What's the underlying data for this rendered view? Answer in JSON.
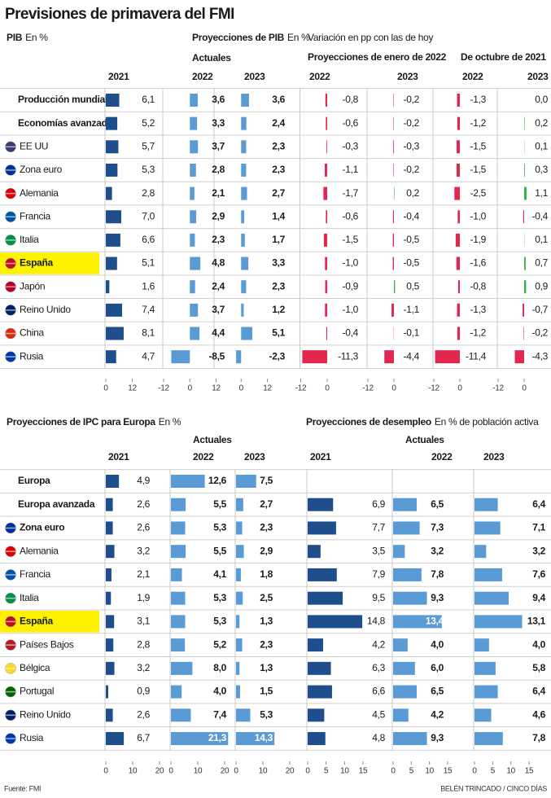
{
  "title": "Previsiones de primavera del FMI",
  "headers": [
    {
      "title": "PIB",
      "unit": "En %"
    },
    {
      "title": "Proyecciones de PIB",
      "unit": "En %",
      "subtitle": "Actuales"
    },
    {
      "title": "Variación en pp con las de hoy"
    },
    {
      "title": "Proyecciones de enero de 2022"
    },
    {
      "title": "De octubre de 2021"
    },
    {
      "title": "Proyecciones de IPC para Europa",
      "unit": "En %",
      "subtitle": "Actuales"
    },
    {
      "title": "Proyecciones de desempleo",
      "unit": "En % de población activa",
      "subtitle": "Actuales"
    }
  ],
  "chart_data": [
    {
      "type": "bar",
      "orientation": "horizontal",
      "title": "2021",
      "categories": [
        "Producción mundial",
        "Economías avanzadas",
        "EE UU",
        "Zona euro",
        "Alemania",
        "Francia",
        "Italia",
        "España",
        "Japón",
        "Reino Unido",
        "China",
        "Rusia"
      ],
      "values": [
        6.1,
        5.2,
        5.7,
        5.3,
        2.8,
        7.0,
        6.6,
        5.1,
        1.6,
        7.4,
        8.1,
        4.7
      ],
      "value_labels": [
        "6,1",
        "5,2",
        "5,7",
        "5,3",
        "2,8",
        "7,0",
        "6,6",
        "5,1",
        "1,6",
        "7,4",
        "8,1",
        "4,7"
      ],
      "color": "#1f4e8c",
      "xlim": [
        0,
        12
      ],
      "xticks": [
        0,
        12
      ]
    },
    {
      "type": "bar",
      "orientation": "horizontal",
      "title": "2022",
      "values": [
        3.6,
        3.3,
        3.7,
        2.8,
        2.1,
        2.9,
        2.3,
        4.8,
        2.4,
        3.7,
        4.4,
        -8.5
      ],
      "value_labels": [
        "3,6",
        "3,3",
        "3,7",
        "2,8",
        "2,1",
        "2,9",
        "2,3",
        "4,8",
        "2,4",
        "3,7",
        "4,4",
        "-8,5"
      ],
      "color": "#5b9bd5",
      "xlim": [
        -12,
        12
      ],
      "xticks": [
        -12,
        0,
        12
      ]
    },
    {
      "type": "bar",
      "orientation": "horizontal",
      "title": "2023",
      "values": [
        3.6,
        2.4,
        2.3,
        2.3,
        2.7,
        1.4,
        1.7,
        3.3,
        2.3,
        1.2,
        5.1,
        -2.3
      ],
      "value_labels": [
        "3,6",
        "2,4",
        "2,3",
        "2,3",
        "2,7",
        "1,4",
        "1,7",
        "3,3",
        "2,3",
        "1,2",
        "5,1",
        "-2,3"
      ],
      "color": "#5b9bd5",
      "xlim": [
        -12,
        12
      ],
      "xticks": [
        0,
        12
      ]
    },
    {
      "type": "bar",
      "orientation": "horizontal",
      "title": "2022",
      "values": [
        -0.8,
        -0.6,
        -0.3,
        -1.1,
        -1.7,
        -0.6,
        -1.5,
        -1.0,
        -0.9,
        -1.0,
        -0.4,
        -11.3
      ],
      "value_labels": [
        "-0,8",
        "-0,6",
        "-0,3",
        "-1,1",
        "-1,7",
        "-0,6",
        "-1,5",
        "-1,0",
        "-0,9",
        "-1,0",
        "-0,4",
        "-11,3"
      ],
      "color": "#3cae4a",
      "negative_color": "#e2264d",
      "xlim": [
        -12,
        12
      ],
      "xticks": [
        -12,
        0
      ]
    },
    {
      "type": "bar",
      "orientation": "horizontal",
      "title": "2023",
      "values": [
        -0.2,
        -0.2,
        -0.3,
        -0.2,
        0.2,
        -0.4,
        -0.5,
        -0.5,
        0.5,
        -1.1,
        -0.1,
        -4.4
      ],
      "value_labels": [
        "-0,2",
        "-0,2",
        "-0,3",
        "-0,2",
        "0,2",
        "-0,4",
        "-0,5",
        "-0,5",
        "0,5",
        "-1,1",
        "-0,1",
        "-4,4"
      ],
      "color": "#3cae4a",
      "negative_color": "#e2264d",
      "xlim": [
        -12,
        12
      ],
      "xticks": [
        -12,
        0
      ]
    },
    {
      "type": "bar",
      "orientation": "horizontal",
      "title": "2022",
      "values": [
        -1.3,
        -1.2,
        -1.5,
        -1.5,
        -2.5,
        -1.0,
        -1.9,
        -1.6,
        -0.8,
        -1.3,
        -1.2,
        -11.4
      ],
      "value_labels": [
        "-1,3",
        "-1,2",
        "-1,5",
        "-1,5",
        "-2,5",
        "-1,0",
        "-1,9",
        "-1,6",
        "-0,8",
        "-1,3",
        "-1,2",
        "-11,4"
      ],
      "color": "#3cae4a",
      "negative_color": "#e2264d",
      "xlim": [
        -12,
        12
      ],
      "xticks": [
        -12,
        0
      ]
    },
    {
      "type": "bar",
      "orientation": "horizontal",
      "title": "2023",
      "values": [
        0.0,
        0.2,
        0.1,
        0.3,
        1.1,
        -0.4,
        0.1,
        0.7,
        0.9,
        -0.7,
        -0.2,
        -4.3
      ],
      "value_labels": [
        "0,0",
        "0,2",
        "0,1",
        "0,3",
        "1,1",
        "-0,4",
        "0,1",
        "0,7",
        "0,9",
        "-0,7",
        "-0,2",
        "-4,3"
      ],
      "color": "#3cae4a",
      "negative_color": "#e2264d",
      "xlim": [
        -12,
        12
      ],
      "xticks": [
        -12,
        0
      ]
    },
    {
      "type": "bar",
      "orientation": "horizontal",
      "title": "2021",
      "categories": [
        "Europa",
        "Europa avanzada",
        "Zona euro",
        "Alemania",
        "Francia",
        "Italia",
        "España",
        "Países Bajos",
        "Bélgica",
        "Portugal",
        "Reino Unido",
        "Rusia"
      ],
      "values": [
        4.9,
        2.6,
        2.6,
        3.2,
        2.1,
        1.9,
        3.1,
        2.8,
        3.2,
        0.9,
        2.6,
        6.7
      ],
      "value_labels": [
        "4,9",
        "2,6",
        "2,6",
        "3,2",
        "2,1",
        "1,9",
        "3,1",
        "2,8",
        "3,2",
        "0,9",
        "2,6",
        "6,7"
      ],
      "color": "#1f4e8c",
      "xlim": [
        0,
        20
      ],
      "xticks": [
        0,
        10,
        20
      ]
    },
    {
      "type": "bar",
      "orientation": "horizontal",
      "title": "2022",
      "values": [
        12.6,
        5.5,
        5.3,
        5.5,
        4.1,
        5.3,
        5.3,
        5.2,
        8.0,
        4.0,
        7.4,
        21.3
      ],
      "value_labels": [
        "12,6",
        "5,5",
        "5,3",
        "5,5",
        "4,1",
        "5,3",
        "5,3",
        "5,2",
        "8,0",
        "4,0",
        "7,4",
        "21,3"
      ],
      "color": "#5b9bd5",
      "xlim": [
        0,
        20
      ],
      "xticks": [
        0,
        10,
        20
      ]
    },
    {
      "type": "bar",
      "orientation": "horizontal",
      "title": "2023",
      "values": [
        7.5,
        2.7,
        2.3,
        2.9,
        1.8,
        2.5,
        1.3,
        2.3,
        1.3,
        1.5,
        5.3,
        14.3
      ],
      "value_labels": [
        "7,5",
        "2,7",
        "2,3",
        "2,9",
        "1,8",
        "2,5",
        "1,3",
        "2,3",
        "1,3",
        "1,5",
        "5,3",
        "14,3"
      ],
      "color": "#5b9bd5",
      "xlim": [
        0,
        20
      ],
      "xticks": [
        0,
        10,
        20
      ]
    },
    {
      "type": "bar",
      "orientation": "horizontal",
      "title": "2021",
      "values": [
        null,
        6.9,
        7.7,
        3.5,
        7.9,
        9.5,
        14.8,
        4.2,
        6.3,
        6.6,
        4.5,
        4.8
      ],
      "value_labels": [
        null,
        "6,9",
        "7,7",
        "3,5",
        "7,9",
        "9,5",
        "14,8",
        "4,2",
        "6,3",
        "6,6",
        "4,5",
        "4,8"
      ],
      "color": "#1f4e8c",
      "xlim": [
        0,
        15
      ],
      "xticks": [
        0,
        5,
        10,
        15
      ]
    },
    {
      "type": "bar",
      "orientation": "horizontal",
      "title": "2022",
      "values": [
        null,
        6.5,
        7.3,
        3.2,
        7.8,
        9.3,
        13.4,
        4.0,
        6.0,
        6.5,
        4.2,
        9.3
      ],
      "value_labels": [
        null,
        "6,5",
        "7,3",
        "3,2",
        "7,8",
        "9,3",
        "13,4",
        "4,0",
        "6,0",
        "6,5",
        "4,2",
        "9,3"
      ],
      "color": "#5b9bd5",
      "xlim": [
        0,
        15
      ],
      "xticks": [
        0,
        5,
        10,
        15
      ]
    },
    {
      "type": "bar",
      "orientation": "horizontal",
      "title": "2023",
      "values": [
        null,
        6.4,
        7.1,
        3.2,
        7.6,
        9.4,
        13.1,
        4.0,
        5.8,
        6.4,
        4.6,
        7.8
      ],
      "value_labels": [
        null,
        "6,4",
        "7,1",
        "3,2",
        "7,6",
        "9,4",
        "13,1",
        "4,0",
        "5,8",
        "6,4",
        "4,6",
        "7,8"
      ],
      "color": "#5b9bd5",
      "xlim": [
        0,
        15
      ],
      "xticks": [
        0,
        5,
        10,
        15
      ]
    }
  ],
  "source": "Fuente: FMI",
  "credit": "BELÉN TRINCADO / CINCO DÍAS"
}
